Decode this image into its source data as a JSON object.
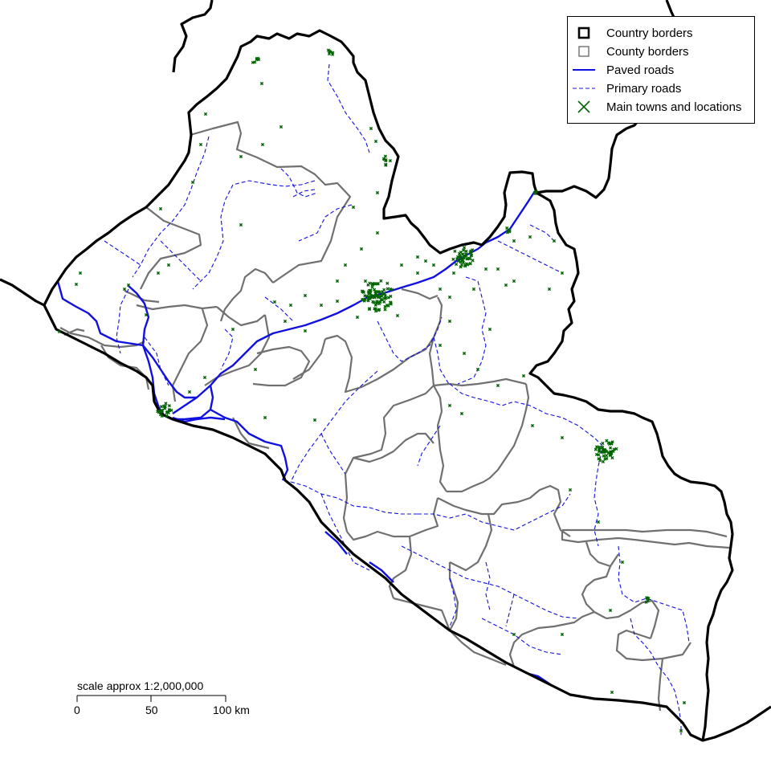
{
  "legend": {
    "items": [
      {
        "label": "Country borders",
        "symbol": "square-thick",
        "color": "#000000"
      },
      {
        "label": "County borders",
        "symbol": "square-thin",
        "color": "#707070"
      },
      {
        "label": "Paved roads",
        "symbol": "line-solid",
        "color": "#1010e0"
      },
      {
        "label": "Primary roads",
        "symbol": "line-dashed",
        "color": "#1010e0"
      },
      {
        "label": "Main towns and locations",
        "symbol": "cross",
        "color": "#006400"
      }
    ]
  },
  "scale": {
    "title": "scale approx 1:2,000,000",
    "ticks": [
      "0",
      "50",
      "100 km"
    ]
  },
  "colors": {
    "country_border": "#000000",
    "county_border": "#707070",
    "road": "#1010e0",
    "town": "#006400"
  }
}
